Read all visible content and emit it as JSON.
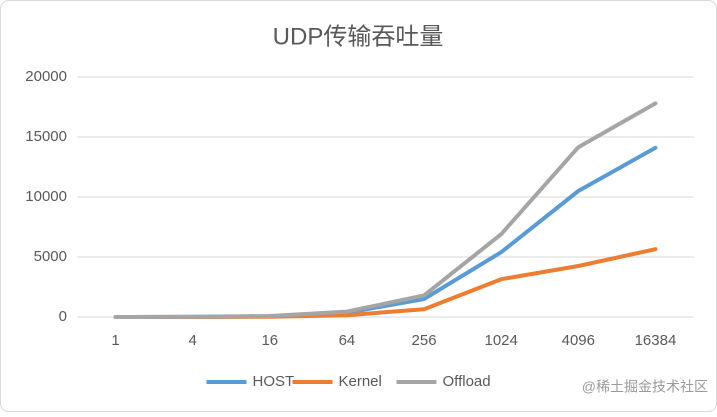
{
  "chart_data": {
    "type": "line",
    "title": "UDP传输吞吐量",
    "categories": [
      "1",
      "4",
      "16",
      "64",
      "256",
      "1024",
      "4096",
      "16384"
    ],
    "series": [
      {
        "name": "HOST",
        "color": "#5b9bd5",
        "values": [
          0,
          10,
          50,
          350,
          1500,
          5400,
          10500,
          14100
        ]
      },
      {
        "name": "Kernel",
        "color": "#ed7d31",
        "values": [
          0,
          5,
          20,
          150,
          650,
          3150,
          4250,
          5650
        ]
      },
      {
        "name": "Offload",
        "color": "#a5a5a5",
        "values": [
          0,
          20,
          80,
          450,
          1800,
          6900,
          14150,
          17800
        ]
      }
    ],
    "ylim": [
      0,
      20000
    ],
    "yticks": [
      0,
      5000,
      10000,
      15000,
      20000
    ],
    "grid": true,
    "legend": "bottom",
    "watermark": "@稀土掘金技术社区"
  }
}
